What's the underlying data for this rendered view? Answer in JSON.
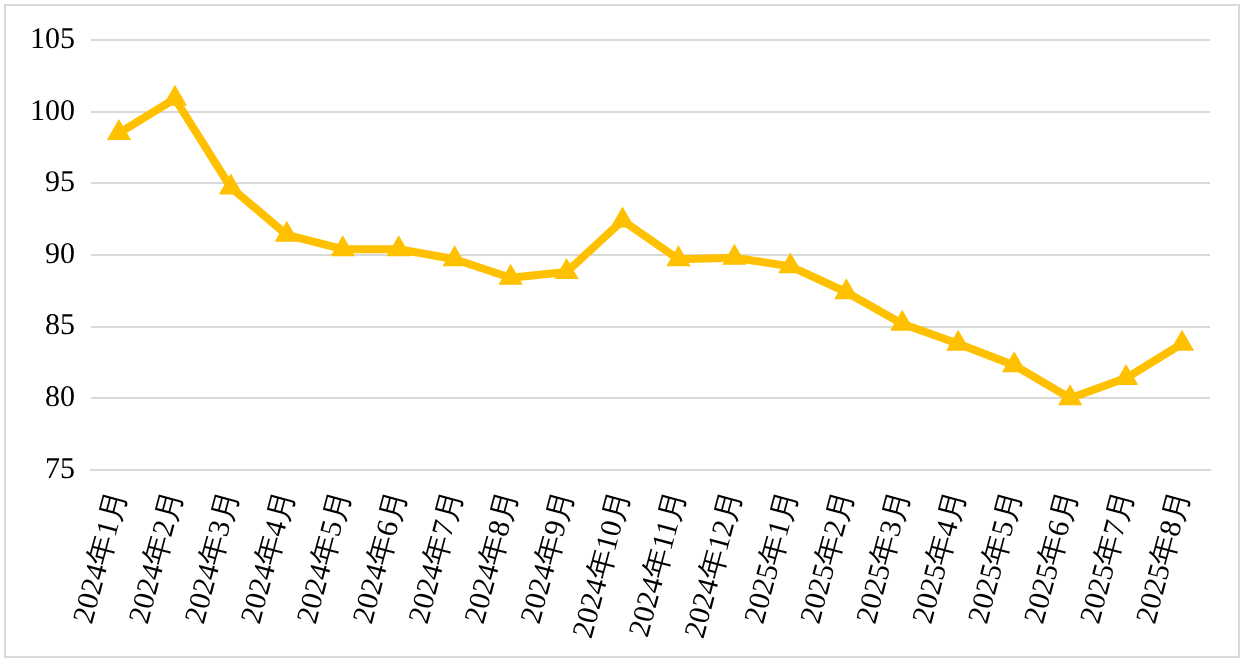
{
  "chart_data": {
    "type": "line",
    "categories": [
      "2024年1月",
      "2024年2月",
      "2024年3月",
      "2024年4月",
      "2024年5月",
      "2024年6月",
      "2024年7月",
      "2024年8月",
      "2024年9月",
      "2024年10月",
      "2024年11月",
      "2024年12月",
      "2025年1月",
      "2025年2月",
      "2025年3月",
      "2025年4月",
      "2025年5月",
      "2025年6月",
      "2025年7月",
      "2025年8月"
    ],
    "series": [
      {
        "color": "#ffc000",
        "values": [
          98.5,
          100.9,
          94.7,
          91.4,
          90.4,
          90.4,
          89.7,
          88.4,
          88.8,
          92.4,
          89.7,
          89.8,
          89.2,
          87.4,
          85.2,
          83.8,
          82.3,
          80.0,
          81.4,
          83.8
        ]
      }
    ],
    "ylim": [
      75,
      105
    ],
    "yticks": [
      75,
      80,
      85,
      90,
      95,
      100,
      105
    ],
    "grid": "y",
    "legend": false,
    "marker": "triangle",
    "line_style": "solid"
  }
}
